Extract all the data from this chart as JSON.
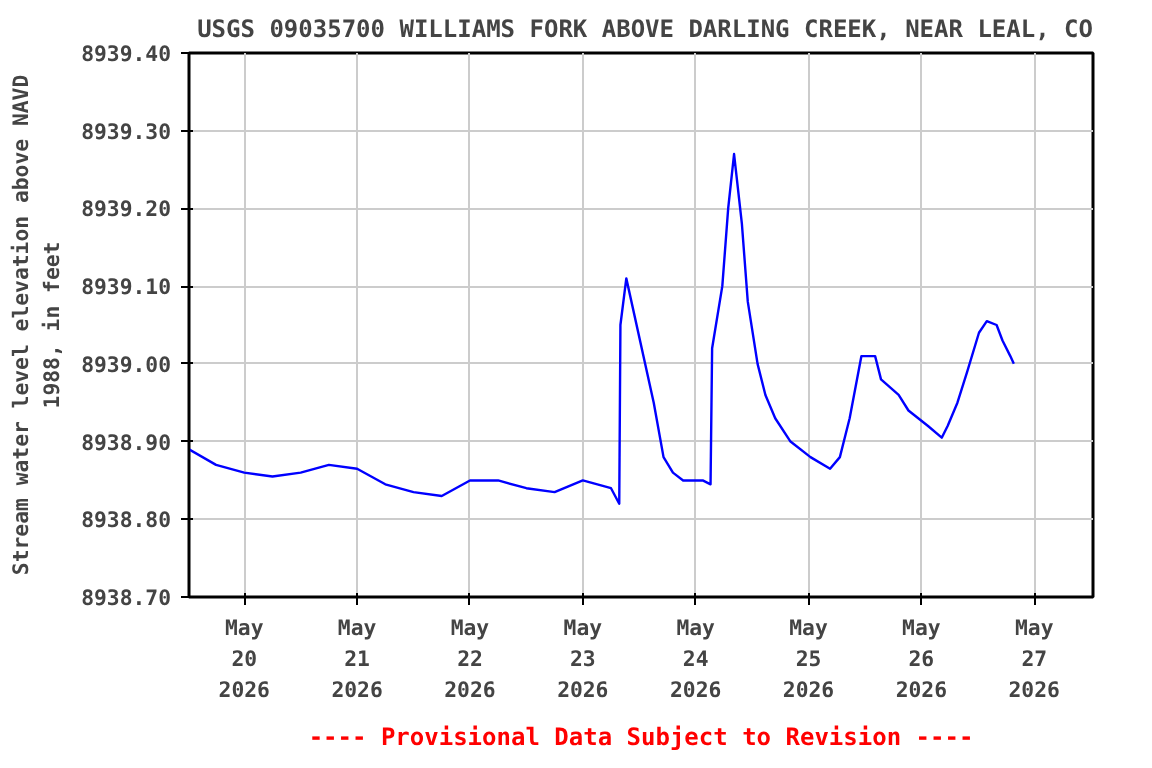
{
  "chart_data": {
    "type": "line",
    "title": "USGS 09035700 WILLIAMS FORK ABOVE DARLING CREEK, NEAR LEAL, CO",
    "ylabel": "Stream water level elevation above NAVD\n1988, in feet",
    "annotations": [
      "---- Provisional Data Subject to Revision ----"
    ],
    "xlim": [
      "2026-05-19T12:15",
      "2026-05-27T12:30"
    ],
    "xticks": [
      {
        "value": "2026-05-20T00:00",
        "label": "May\n20\n2026"
      },
      {
        "value": "2026-05-21T00:00",
        "label": "May\n21\n2026"
      },
      {
        "value": "2026-05-22T00:00",
        "label": "May\n22\n2026"
      },
      {
        "value": "2026-05-23T00:00",
        "label": "May\n23\n2026"
      },
      {
        "value": "2026-05-24T00:00",
        "label": "May\n24\n2026"
      },
      {
        "value": "2026-05-25T00:00",
        "label": "May\n25\n2026"
      },
      {
        "value": "2026-05-26T00:00",
        "label": "May\n26\n2026"
      },
      {
        "value": "2026-05-27T00:00",
        "label": "May\n27\n2026"
      }
    ],
    "ylim": [
      8938.7,
      8939.4
    ],
    "yticks": [
      {
        "value": 8938.7,
        "label": "8938.70"
      },
      {
        "value": 8938.8,
        "label": "8938.80"
      },
      {
        "value": 8938.9,
        "label": "8938.90"
      },
      {
        "value": 8939.0,
        "label": "8939.00"
      },
      {
        "value": 8939.1,
        "label": "8939.10"
      },
      {
        "value": 8939.2,
        "label": "8939.20"
      },
      {
        "value": 8939.3,
        "label": "8939.30"
      },
      {
        "value": 8939.4,
        "label": "8939.40"
      }
    ],
    "grid": true,
    "series": [
      {
        "color": "#0000ff",
        "x": [
          "2026-05-19T12:15",
          "2026-05-19T18:00",
          "2026-05-20T00:00",
          "2026-05-20T06:00",
          "2026-05-20T12:00",
          "2026-05-20T18:00",
          "2026-05-21T00:00",
          "2026-05-21T06:00",
          "2026-05-21T12:00",
          "2026-05-21T18:00",
          "2026-05-22T00:00",
          "2026-05-22T06:00",
          "2026-05-22T12:00",
          "2026-05-22T18:00",
          "2026-05-23T00:00",
          "2026-05-23T06:00",
          "2026-05-23T07:45",
          "2026-05-23T08:00",
          "2026-05-23T09:15",
          "2026-05-23T15:05",
          "2026-05-23T17:10",
          "2026-05-23T19:10",
          "2026-05-23T21:20",
          "2026-05-24T01:30",
          "2026-05-24T03:10",
          "2026-05-24T03:30",
          "2026-05-24T05:40",
          "2026-05-24T06:55",
          "2026-05-24T08:10",
          "2026-05-24T09:50",
          "2026-05-24T11:05",
          "2026-05-24T13:10",
          "2026-05-24T14:50",
          "2026-05-24T16:55",
          "2026-05-24T20:10",
          "2026-05-25T00:25",
          "2026-05-25T04:35",
          "2026-05-25T06:40",
          "2026-05-25T08:45",
          "2026-05-25T11:15",
          "2026-05-25T14:10",
          "2026-05-25T15:25",
          "2026-05-25T19:10",
          "2026-05-25T21:15",
          "2026-05-26T01:25",
          "2026-05-26T04:20",
          "2026-05-26T05:35",
          "2026-05-26T07:40",
          "2026-05-26T09:45",
          "2026-05-26T12:15",
          "2026-05-26T13:55",
          "2026-05-26T16:00",
          "2026-05-26T17:15",
          "2026-05-26T18:55",
          "2026-05-26T19:40"
        ],
        "values": [
          8938.89,
          8938.87,
          8938.86,
          8938.855,
          8938.86,
          8938.87,
          8938.865,
          8938.845,
          8938.835,
          8938.83,
          8938.85,
          8938.85,
          8938.84,
          8938.835,
          8938.85,
          8938.84,
          8938.82,
          8939.05,
          8939.11,
          8938.95,
          8938.88,
          8938.86,
          8938.85,
          8938.85,
          8938.845,
          8939.02,
          8939.1,
          8939.2,
          8939.27,
          8939.18,
          8939.08,
          8939.0,
          8938.96,
          8938.93,
          8938.9,
          8938.88,
          8938.865,
          8938.88,
          8938.93,
          8939.01,
          8939.01,
          8938.98,
          8938.96,
          8938.94,
          8938.92,
          8938.905,
          8938.92,
          8938.95,
          8938.99,
          8939.04,
          8939.055,
          8939.05,
          8939.03,
          8939.01,
          8939.0
        ]
      }
    ]
  }
}
